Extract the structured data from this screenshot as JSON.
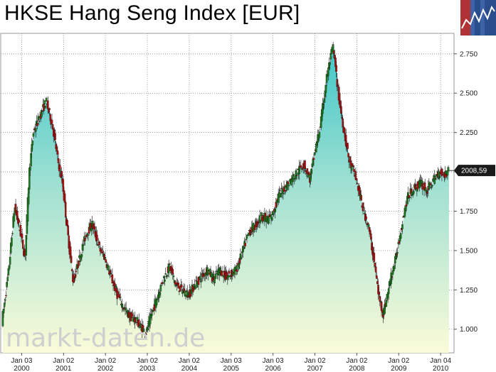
{
  "title": "HKSE Hang Seng Index [EUR]",
  "watermark": "markt-daten.de",
  "colors": {
    "up": "#1b7a1b",
    "down": "#b01010",
    "area_top": "#6fd3cf",
    "area_bottom": "#fafbd8",
    "grid": "#888888",
    "logo_bg": "#2a4d8c",
    "logo_accent": "#c0302a"
  },
  "chart_data": {
    "type": "area",
    "ylim": [
      0.85,
      2.88
    ],
    "y_ticks": [
      "1.000",
      "1.250",
      "1.500",
      "1.750",
      "2.000",
      "2.250",
      "2.500",
      "2.750"
    ],
    "x_ticks": [
      {
        "top": "Jan 03",
        "bottom": "2000"
      },
      {
        "top": "Jan 02",
        "bottom": "2001"
      },
      {
        "top": "Jan 02",
        "bottom": "2002"
      },
      {
        "top": "Jan 02",
        "bottom": "2003"
      },
      {
        "top": "Jan 02",
        "bottom": "2004"
      },
      {
        "top": "Jan 03",
        "bottom": "2005"
      },
      {
        "top": "Jan 03",
        "bottom": "2006"
      },
      {
        "top": "Jan 02",
        "bottom": "2007"
      },
      {
        "top": "Jan 02",
        "bottom": "2008"
      },
      {
        "top": "Jan 02",
        "bottom": "2009"
      },
      {
        "top": "Jan 04",
        "bottom": "2010"
      }
    ],
    "last_value_label": "2008,59",
    "last_value": 2008.59,
    "series": [
      {
        "x": [
          1999.55,
          1999.7,
          1999.85,
          2000.0,
          2000.1,
          2000.2,
          2000.3,
          2000.45,
          2000.6,
          2000.75,
          2000.9,
          2001.0,
          2001.1,
          2001.25,
          2001.4,
          2001.55,
          2001.7,
          2001.8,
          2001.9,
          2002.0,
          2002.15,
          2002.3,
          2002.45,
          2002.6,
          2002.75,
          2002.9,
          2003.0,
          2003.1,
          2003.25,
          2003.4,
          2003.55,
          2003.7,
          2003.85,
          2004.0,
          2004.15,
          2004.3,
          2004.45,
          2004.6,
          2004.75,
          2004.9,
          2005.0,
          2005.15,
          2005.3,
          2005.45,
          2005.6,
          2005.75,
          2005.9,
          2006.0,
          2006.15,
          2006.3,
          2006.45,
          2006.6,
          2006.75,
          2006.9,
          2007.0,
          2007.15,
          2007.3,
          2007.45,
          2007.6,
          2007.75,
          2007.85,
          2007.95,
          2008.05,
          2008.15,
          2008.3,
          2008.45,
          2008.55,
          2008.65,
          2008.75,
          2008.85,
          2008.95,
          2009.05,
          2009.15,
          2009.25,
          2009.4,
          2009.55,
          2009.7,
          2009.85,
          2010.0,
          2010.12,
          2010.2
        ],
        "values": [
          1.05,
          1.35,
          1.78,
          1.6,
          1.45,
          2.0,
          2.25,
          2.35,
          2.45,
          2.3,
          2.05,
          1.92,
          1.65,
          1.3,
          1.45,
          1.6,
          1.67,
          1.58,
          1.5,
          1.46,
          1.33,
          1.22,
          1.14,
          1.08,
          1.06,
          1.0,
          0.98,
          1.08,
          1.2,
          1.32,
          1.4,
          1.28,
          1.25,
          1.22,
          1.28,
          1.33,
          1.38,
          1.32,
          1.38,
          1.33,
          1.35,
          1.38,
          1.5,
          1.62,
          1.66,
          1.72,
          1.7,
          1.72,
          1.85,
          1.9,
          1.95,
          2.0,
          2.05,
          1.95,
          2.1,
          2.3,
          2.6,
          2.8,
          2.45,
          2.2,
          2.05,
          2.0,
          1.9,
          1.78,
          1.65,
          1.4,
          1.2,
          1.1,
          1.22,
          1.35,
          1.45,
          1.6,
          1.75,
          1.85,
          1.9,
          1.93,
          1.88,
          1.95,
          2.0,
          1.98,
          2.01
        ]
      }
    ]
  }
}
